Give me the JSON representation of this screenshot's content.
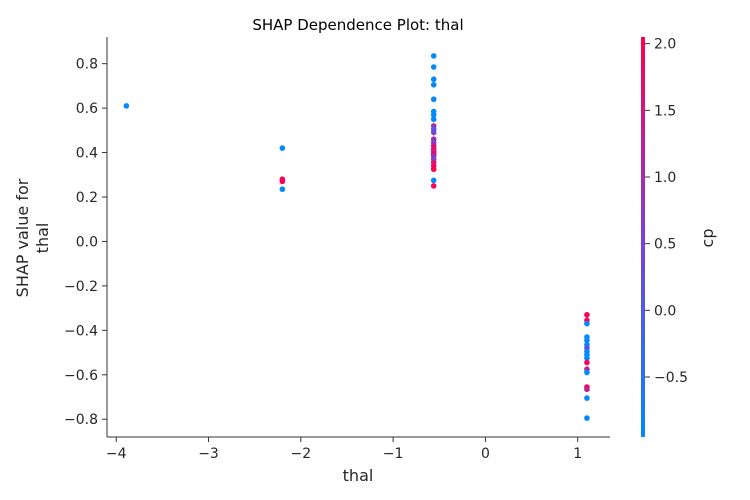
{
  "chart_data": {
    "type": "scatter",
    "title": "SHAP Dependence Plot: thal",
    "xlabel": "thal",
    "ylabel_lines": [
      "SHAP value for",
      "thal"
    ],
    "xlim": [
      -4.1,
      1.35
    ],
    "ylim": [
      -0.88,
      0.92
    ],
    "x_ticks": [
      -4,
      -3,
      -2,
      -1,
      0,
      1
    ],
    "x_tick_labels": [
      "−4",
      "−3",
      "−2",
      "−1",
      "0",
      "1"
    ],
    "y_ticks": [
      -0.8,
      -0.6,
      -0.4,
      -0.2,
      0.0,
      0.2,
      0.4,
      0.6,
      0.8
    ],
    "y_tick_labels": [
      "−0.8",
      "−0.6",
      "−0.4",
      "−0.2",
      "0.0",
      "0.2",
      "0.4",
      "0.6",
      "0.8"
    ],
    "grid": false,
    "colorbar": {
      "label": "cp",
      "range": [
        -0.95,
        2.05
      ],
      "ticks": [
        -0.5,
        0.0,
        0.5,
        1.0,
        1.5,
        2.0
      ],
      "tick_labels": [
        "−0.5",
        "0.0",
        "0.5",
        "1.0",
        "1.5",
        "2.0"
      ],
      "color_low": "#008afb",
      "color_mid": "#7d3fd6",
      "color_high": "#ff0052"
    },
    "points": [
      {
        "x": -3.89,
        "y": 0.61,
        "c": -0.93
      },
      {
        "x": -2.2,
        "y": 0.42,
        "c": -0.93
      },
      {
        "x": -2.2,
        "y": 0.28,
        "c": 2.0
      },
      {
        "x": -2.2,
        "y": 0.27,
        "c": 2.0
      },
      {
        "x": -2.2,
        "y": 0.235,
        "c": -0.93
      },
      {
        "x": -0.56,
        "y": 0.835,
        "c": -0.93
      },
      {
        "x": -0.56,
        "y": 0.785,
        "c": -0.93
      },
      {
        "x": -0.56,
        "y": 0.73,
        "c": -0.93
      },
      {
        "x": -0.56,
        "y": 0.705,
        "c": -0.93
      },
      {
        "x": -0.56,
        "y": 0.64,
        "c": -0.93
      },
      {
        "x": -0.56,
        "y": 0.585,
        "c": -0.93
      },
      {
        "x": -0.56,
        "y": 0.57,
        "c": -0.93
      },
      {
        "x": -0.56,
        "y": 0.55,
        "c": -0.93
      },
      {
        "x": -0.56,
        "y": 0.52,
        "c": 1.0
      },
      {
        "x": -0.56,
        "y": 0.505,
        "c": 0.0
      },
      {
        "x": -0.56,
        "y": 0.49,
        "c": 0.5
      },
      {
        "x": -0.56,
        "y": 0.46,
        "c": 1.0
      },
      {
        "x": -0.56,
        "y": 0.445,
        "c": 0.5
      },
      {
        "x": -0.56,
        "y": 0.43,
        "c": 1.6
      },
      {
        "x": -0.56,
        "y": 0.415,
        "c": 2.0
      },
      {
        "x": -0.56,
        "y": 0.405,
        "c": 1.0
      },
      {
        "x": -0.56,
        "y": 0.395,
        "c": 2.0
      },
      {
        "x": -0.56,
        "y": 0.385,
        "c": 1.0
      },
      {
        "x": -0.56,
        "y": 0.37,
        "c": 0.5
      },
      {
        "x": -0.56,
        "y": 0.355,
        "c": 1.6
      },
      {
        "x": -0.56,
        "y": 0.34,
        "c": 2.0
      },
      {
        "x": -0.56,
        "y": 0.325,
        "c": 2.0
      },
      {
        "x": -0.56,
        "y": 0.275,
        "c": -0.93
      },
      {
        "x": -0.56,
        "y": 0.25,
        "c": 2.0
      },
      {
        "x": 1.1,
        "y": -0.33,
        "c": 2.0
      },
      {
        "x": 1.1,
        "y": -0.355,
        "c": 2.0
      },
      {
        "x": 1.1,
        "y": -0.37,
        "c": -0.93
      },
      {
        "x": 1.1,
        "y": -0.43,
        "c": -0.93
      },
      {
        "x": 1.1,
        "y": -0.445,
        "c": -0.93
      },
      {
        "x": 1.1,
        "y": -0.465,
        "c": -0.93
      },
      {
        "x": 1.1,
        "y": -0.48,
        "c": 0.3
      },
      {
        "x": 1.1,
        "y": -0.495,
        "c": -0.93
      },
      {
        "x": 1.1,
        "y": -0.51,
        "c": -0.93
      },
      {
        "x": 1.1,
        "y": -0.525,
        "c": -0.93
      },
      {
        "x": 1.1,
        "y": -0.545,
        "c": 2.0
      },
      {
        "x": 1.1,
        "y": -0.575,
        "c": 1.2
      },
      {
        "x": 1.1,
        "y": -0.59,
        "c": -0.93
      },
      {
        "x": 1.1,
        "y": -0.655,
        "c": 2.0
      },
      {
        "x": 1.1,
        "y": -0.665,
        "c": 1.3
      },
      {
        "x": 1.1,
        "y": -0.705,
        "c": -0.93
      },
      {
        "x": 1.1,
        "y": -0.795,
        "c": -0.93
      }
    ]
  }
}
